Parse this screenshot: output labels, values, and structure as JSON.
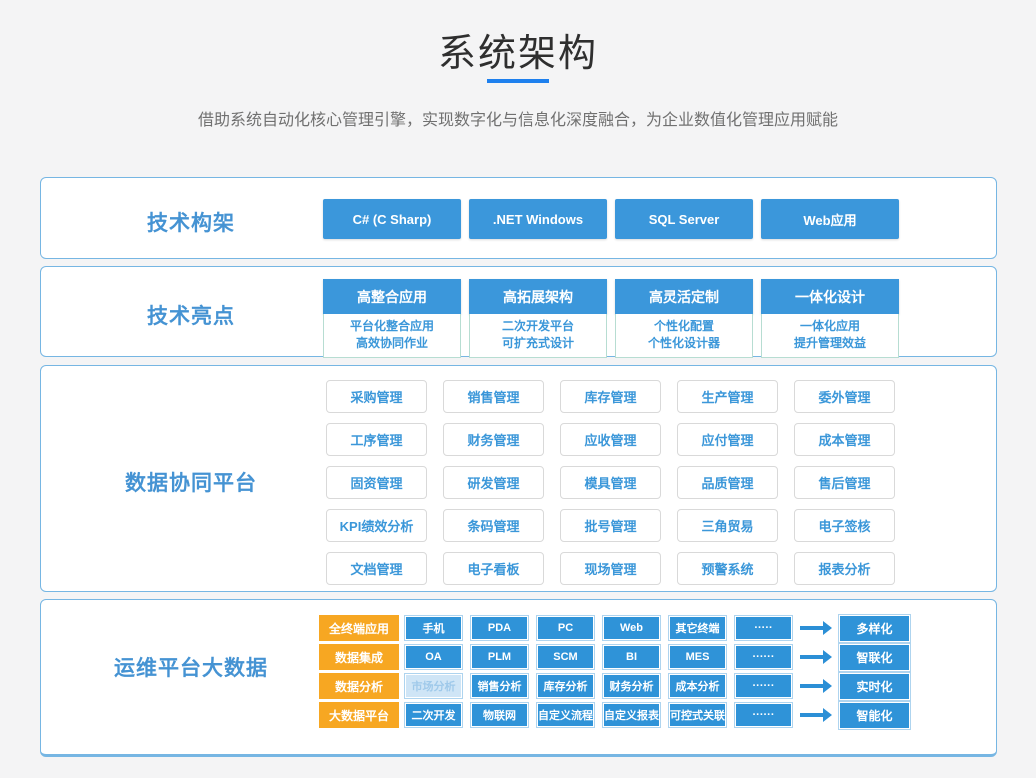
{
  "header": {
    "title": "系统架构",
    "subtitle": "借助系统自动化核心管理引擎，实现数字化与信息化深度融合，为企业数值化管理应用赋能"
  },
  "colors": {
    "primary_blue": "#3b97db",
    "underline_blue": "#1e80ee",
    "label_blue": "#4593d3",
    "box_border_blue": "#76b6e3",
    "orange": "#f7a722",
    "faded_blue_bg": "#cfe5f6"
  },
  "tech_framework": {
    "label": "技术构架",
    "buttons": [
      "C# (C Sharp)",
      ".NET Windows",
      "SQL Server",
      "Web应用"
    ]
  },
  "tech_highlights": {
    "label": "技术亮点",
    "cards": [
      {
        "title": "高整合应用",
        "lines": [
          "平台化整合应用",
          "高效协同作业"
        ]
      },
      {
        "title": "高拓展架构",
        "lines": [
          "二次开发平台",
          "可扩充式设计"
        ]
      },
      {
        "title": "高灵活定制",
        "lines": [
          "个性化配置",
          "个性化设计器"
        ]
      },
      {
        "title": "一体化设计",
        "lines": [
          "一体化应用",
          "提升管理效益"
        ]
      }
    ]
  },
  "data_platform": {
    "label": "数据协同平台",
    "modules": [
      "采购管理",
      "销售管理",
      "库存管理",
      "生产管理",
      "委外管理",
      "工序管理",
      "财务管理",
      "应收管理",
      "应付管理",
      "成本管理",
      "固资管理",
      "研发管理",
      "模具管理",
      "品质管理",
      "售后管理",
      "KPI绩效分析",
      "条码管理",
      "批号管理",
      "三角贸易",
      "电子签核",
      "文档管理",
      "电子看板",
      "现场管理",
      "预警系统",
      "报表分析"
    ]
  },
  "ops_platform": {
    "label": "运维平台大数据",
    "rows": [
      {
        "category": "全终端应用",
        "items": [
          "手机",
          "PDA",
          "PC",
          "Web",
          "其它终端",
          "·····"
        ],
        "result": "多样化"
      },
      {
        "category": "数据集成",
        "items": [
          "OA",
          "PLM",
          "SCM",
          "BI",
          "MES",
          "······"
        ],
        "result": "智联化"
      },
      {
        "category": "数据分析",
        "items": [
          "市场分析",
          "销售分析",
          "库存分析",
          "财务分析",
          "成本分析",
          "······"
        ],
        "result": "实时化"
      },
      {
        "category": "大数据平台",
        "items": [
          "二次开发",
          "物联网",
          "自定义流程",
          "自定义报表",
          "可控式关联",
          "······"
        ],
        "result": "智能化"
      }
    ]
  }
}
